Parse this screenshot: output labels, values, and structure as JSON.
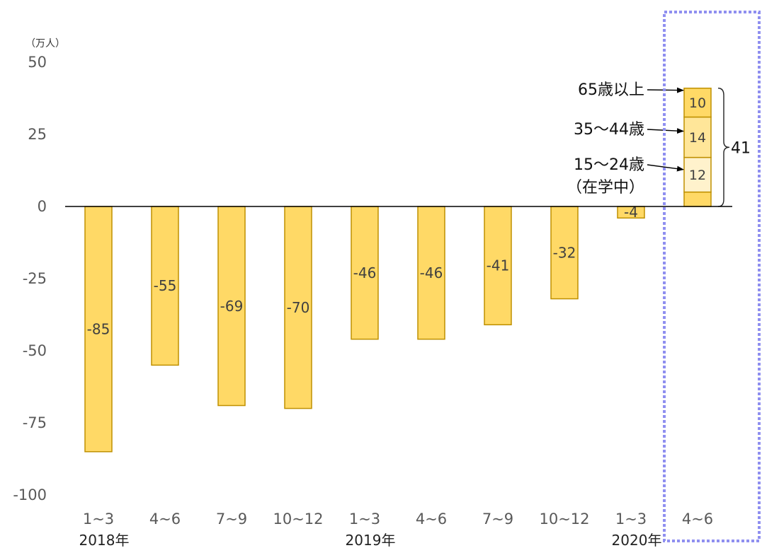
{
  "chart_data": {
    "type": "bar",
    "unit_label": "（万人）",
    "ylim": [
      -100,
      50
    ],
    "yticks": [
      "50",
      "25",
      "0",
      "-25",
      "-50",
      "-75",
      "-100"
    ],
    "categories": [
      "1~3",
      "4~6",
      "7~9",
      "10~12",
      "1~3",
      "4~6",
      "7~9",
      "10~12",
      "1~3",
      "4~6"
    ],
    "year_labels": [
      {
        "at": 0,
        "text": "2018年"
      },
      {
        "at": 4,
        "text": "2019年"
      },
      {
        "at": 8,
        "text": "2020年"
      }
    ],
    "values": [
      -85,
      -55,
      -69,
      -70,
      -46,
      -46,
      -41,
      -32,
      -4,
      null
    ],
    "labels": [
      "-85",
      "-55",
      "-69",
      "-70",
      "-46",
      "-46",
      "-41",
      "-32",
      "-4",
      ""
    ],
    "stacked_bar": {
      "category_index": 9,
      "segments": [
        {
          "value": 5,
          "label": "",
          "color": "#FFD966"
        },
        {
          "value": 12,
          "label": "12",
          "color": "#FFF2CC"
        },
        {
          "value": 14,
          "label": "14",
          "color": "#FFE699"
        },
        {
          "value": 10,
          "label": "10",
          "color": "#FFD966"
        }
      ],
      "total_label": "41"
    },
    "annotations": [
      {
        "text": "65歳以上",
        "segment": 3
      },
      {
        "text": "35〜44歳",
        "segment": 2
      },
      {
        "text": "15〜24歳",
        "text2": "（在学中）",
        "segment": 1
      }
    ],
    "colors": {
      "bar_fill": "#FFD966",
      "bar_stroke": "#BF9000",
      "highlight_box": "#8F8FF0",
      "axis": "#000000"
    }
  }
}
